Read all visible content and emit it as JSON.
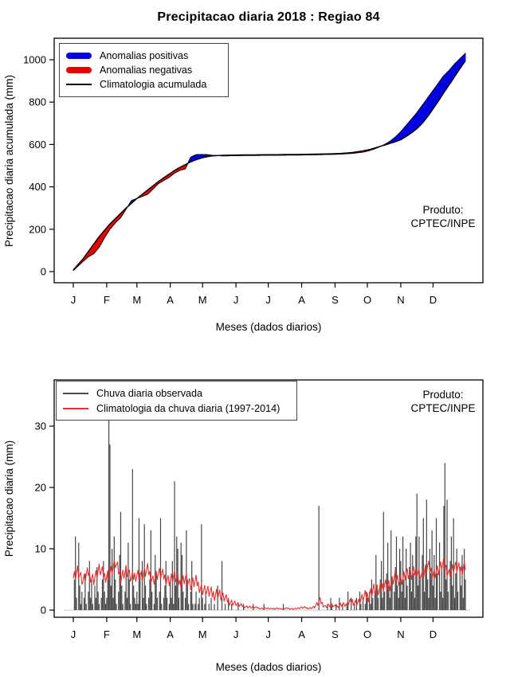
{
  "watermark": {
    "line1": "Produto:",
    "line2": "CPTEC/INPE"
  },
  "chart_data": [
    {
      "type": "area",
      "title": "Precipitacao diaria 2018 : Regiao 84",
      "xlabel": "Meses (dados diarios)",
      "ylabel": "Precipitacao diaria acumulada (mm)",
      "ylim": [
        0,
        1030
      ],
      "yticks": [
        0,
        200,
        400,
        600,
        800,
        1000
      ],
      "xticks": {
        "labels": [
          "J",
          "F",
          "M",
          "A",
          "M",
          "J",
          "J",
          "A",
          "S",
          "O",
          "N",
          "D"
        ],
        "month_start_days": [
          1,
          32,
          60,
          91,
          121,
          152,
          182,
          213,
          244,
          274,
          305,
          335
        ]
      },
      "legend": [
        {
          "label": "Anomalias positivas",
          "color": "#0000e0",
          "style": "thick"
        },
        {
          "label": "Anomalias negativas",
          "color": "#e60000",
          "style": "thick"
        },
        {
          "label": "Climatologia acumulada",
          "color": "#000000",
          "style": "thin"
        }
      ],
      "colors": {
        "positive_fill": "#0000e0",
        "negative_fill": "#e60000",
        "line": "#000000"
      },
      "series": {
        "days": [
          1,
          10,
          15,
          20,
          25,
          30,
          35,
          40,
          45,
          50,
          55,
          60,
          65,
          70,
          75,
          80,
          85,
          90,
          95,
          100,
          105,
          110,
          115,
          120,
          125,
          130,
          140,
          150,
          160,
          170,
          180,
          190,
          200,
          210,
          220,
          230,
          240,
          250,
          260,
          270,
          275,
          280,
          285,
          290,
          295,
          300,
          305,
          310,
          315,
          320,
          325,
          330,
          335,
          340,
          345,
          350,
          355,
          360,
          365
        ],
        "climatologia_acumulada": [
          8,
          60,
          95,
          130,
          165,
          195,
          225,
          250,
          275,
          300,
          322,
          345,
          365,
          385,
          405,
          425,
          443,
          460,
          478,
          492,
          505,
          518,
          528,
          536,
          542,
          546,
          549,
          550,
          551,
          551,
          552,
          552,
          553,
          553,
          554,
          555,
          556,
          558,
          562,
          570,
          575,
          582,
          590,
          597,
          605,
          613,
          622,
          638,
          655,
          675,
          700,
          732,
          768,
          805,
          845,
          882,
          920,
          958,
          995
        ],
        "observado_acumulado": [
          5,
          48,
          70,
          85,
          115,
          160,
          200,
          230,
          255,
          295,
          335,
          345,
          355,
          365,
          390,
          415,
          430,
          445,
          465,
          478,
          485,
          540,
          552,
          553,
          552,
          549,
          546,
          547,
          548,
          548,
          549,
          549,
          550,
          550,
          551,
          552,
          553,
          555,
          558,
          564,
          570,
          578,
          588,
          600,
          615,
          635,
          660,
          690,
          720,
          750,
          785,
          820,
          855,
          890,
          925,
          950,
          980,
          1005,
          1030
        ]
      }
    },
    {
      "type": "bar+line",
      "xlabel": "Meses (dados diarios)",
      "ylabel": "Precipitacao diaria (mm)",
      "ylim": [
        0,
        31
      ],
      "yticks": [
        0,
        10,
        20,
        30
      ],
      "xticks": {
        "labels": [
          "J",
          "F",
          "M",
          "A",
          "M",
          "J",
          "J",
          "A",
          "S",
          "O",
          "N",
          "D"
        ],
        "month_start_days": [
          1,
          32,
          60,
          91,
          121,
          152,
          182,
          213,
          244,
          274,
          305,
          335
        ]
      },
      "legend": [
        {
          "label": "Chuva diaria observada",
          "color": "#4d4d4d",
          "style": "thin"
        },
        {
          "label": "Climatologia da chuva diaria (1997-2014)",
          "color": "#e63232",
          "style": "thin"
        }
      ],
      "colors": {
        "bars": "#464646",
        "climatology_line": "#e63232",
        "baseline": "#c8c8c8"
      },
      "daily_observed_mm_by_month": [
        [
          0,
          5,
          12,
          2,
          0,
          11,
          4,
          1,
          3,
          0,
          2,
          6,
          1,
          0,
          3,
          8,
          2,
          5,
          1,
          0,
          4,
          2,
          7,
          3,
          1,
          0,
          2,
          5,
          8,
          3,
          1
        ],
        [
          2,
          6,
          31,
          27,
          4,
          10,
          2,
          12,
          5,
          1,
          0,
          3,
          9,
          16,
          4,
          1,
          0,
          3,
          7,
          2,
          11,
          5,
          1,
          0,
          23,
          4,
          2,
          1
        ],
        [
          3,
          1,
          15,
          6,
          0,
          8,
          2,
          14,
          4,
          1,
          0,
          2,
          5,
          13,
          3,
          0,
          1,
          9,
          6,
          2,
          0,
          3,
          15,
          1,
          0,
          2,
          4,
          8,
          2,
          0,
          1
        ],
        [
          5,
          2,
          8,
          1,
          21,
          4,
          12,
          10,
          2,
          0,
          11,
          9,
          3,
          0,
          2,
          13,
          5,
          1,
          0,
          3,
          8,
          1,
          0,
          1,
          3,
          0,
          1,
          2,
          0,
          14
        ],
        [
          2,
          0,
          1,
          3,
          0,
          0,
          1,
          0,
          2,
          0,
          0,
          1,
          0,
          0,
          4,
          0,
          0,
          0,
          8,
          0,
          0,
          1,
          0,
          0,
          2,
          0,
          0,
          1,
          0,
          0,
          0
        ],
        [
          0,
          0,
          1,
          0,
          0,
          0,
          0,
          1,
          0,
          0,
          0,
          0,
          0,
          0,
          0,
          0,
          1,
          0,
          0,
          0,
          0,
          0,
          0,
          0,
          0,
          0,
          1,
          0,
          0,
          0
        ],
        [
          0,
          0,
          0,
          0,
          0,
          0,
          0,
          0,
          0,
          0,
          0,
          0,
          0,
          0,
          1,
          0,
          0,
          0,
          0,
          0,
          0,
          0,
          0,
          0,
          0,
          0,
          0,
          0,
          0,
          0,
          0
        ],
        [
          0,
          0,
          0,
          0,
          0,
          0,
          0,
          0,
          0,
          0,
          0,
          0,
          0,
          0,
          0,
          0,
          17,
          0,
          0,
          0,
          0,
          0,
          0,
          0,
          1,
          0,
          0,
          2,
          1,
          0,
          0
        ],
        [
          0,
          1,
          0,
          0,
          2,
          0,
          0,
          1,
          0,
          0,
          0,
          1,
          3,
          0,
          0,
          2,
          0,
          0,
          1,
          0,
          2,
          0,
          0,
          3,
          1,
          0,
          2,
          0,
          1,
          3
        ],
        [
          2,
          0,
          3,
          1,
          5,
          2,
          0,
          3,
          9,
          4,
          2,
          0,
          5,
          8,
          2,
          16,
          3,
          0,
          6,
          11,
          4,
          2,
          13,
          5,
          0,
          3,
          7,
          12,
          4,
          2,
          10
        ],
        [
          8,
          3,
          12,
          5,
          2,
          10,
          4,
          0,
          7,
          11,
          3,
          9,
          6,
          2,
          12,
          19,
          4,
          12,
          5,
          0,
          9,
          15,
          3,
          7,
          18,
          5,
          2,
          10,
          6,
          13
        ],
        [
          4,
          9,
          2,
          15,
          6,
          0,
          11,
          3,
          7,
          2,
          17,
          24,
          5,
          18,
          3,
          0,
          8,
          12,
          4,
          15,
          2,
          6,
          10,
          3,
          0,
          7,
          4,
          9,
          2,
          10,
          5
        ]
      ],
      "climatology_daily_mm": {
        "days": [
          1,
          5,
          10,
          15,
          20,
          25,
          30,
          35,
          40,
          45,
          50,
          55,
          60,
          65,
          70,
          75,
          80,
          85,
          90,
          95,
          100,
          105,
          110,
          115,
          120,
          125,
          130,
          135,
          140,
          145,
          150,
          155,
          160,
          165,
          170,
          175,
          180,
          185,
          190,
          195,
          200,
          205,
          210,
          215,
          220,
          225,
          230,
          235,
          240,
          245,
          250,
          255,
          260,
          265,
          270,
          275,
          280,
          285,
          290,
          295,
          300,
          305,
          310,
          315,
          320,
          325,
          330,
          335,
          340,
          345,
          350,
          355,
          360,
          365
        ],
        "values": [
          5.5,
          6.5,
          4.5,
          6,
          5,
          6.5,
          5.5,
          6,
          7.5,
          5.5,
          6.5,
          5,
          6,
          5.5,
          6.5,
          5,
          6,
          5.5,
          5,
          5.5,
          4.5,
          5.5,
          4,
          4.5,
          3.5,
          3,
          2.5,
          2.8,
          2,
          1.5,
          1.2,
          0.8,
          0.6,
          0.5,
          0.4,
          0.3,
          0.3,
          0.2,
          0.3,
          0.2,
          0.3,
          0.2,
          0.3,
          0.4,
          0.3,
          0.5,
          1.4,
          0.6,
          0.8,
          0.5,
          1,
          0.8,
          1.5,
          1.2,
          2,
          2.5,
          3.5,
          3,
          4.5,
          4,
          5.5,
          5,
          6,
          5.5,
          6.5,
          5.5,
          7,
          6,
          6.5,
          7.5,
          6,
          7,
          6.5,
          7.5
        ],
        "jitter_amplitude": 2.4
      }
    }
  ]
}
